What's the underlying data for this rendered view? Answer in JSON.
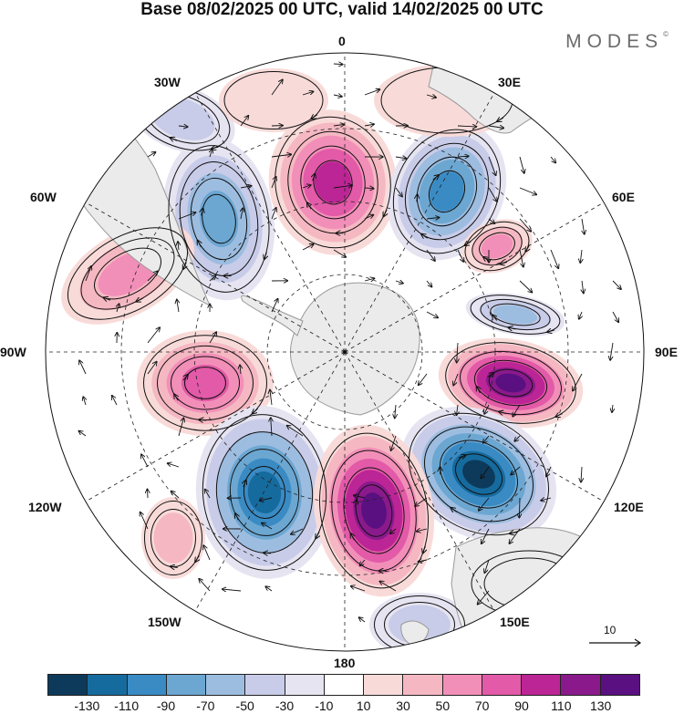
{
  "header": {
    "title": "Base 08/02/2025 00 UTC, valid 14/02/2025 00 UTC",
    "brand": "MODES",
    "brand_mark": "©"
  },
  "map": {
    "projection": "south polar stereographic",
    "longitude_labels": [
      "0",
      "30E",
      "60E",
      "90E",
      "120E",
      "150E",
      "180",
      "150W",
      "120W",
      "90W",
      "60W",
      "30W"
    ],
    "vector_reference": {
      "value_label": "10"
    }
  },
  "colorbar": {
    "colors": [
      "#0d3a5a",
      "#166b9e",
      "#3a8bc4",
      "#6ca7d2",
      "#9dbde0",
      "#c8cce8",
      "#e6e4f1",
      "#ffffff",
      "#f8dbd9",
      "#f5b8c2",
      "#f28fb8",
      "#e25aa8",
      "#bc2595",
      "#8a1a8c",
      "#5a1080"
    ],
    "tick_labels": [
      "-130",
      "-110",
      "-90",
      "-70",
      "-50",
      "-30",
      "-10",
      "10",
      "30",
      "50",
      "70",
      "90",
      "110",
      "130"
    ]
  }
}
